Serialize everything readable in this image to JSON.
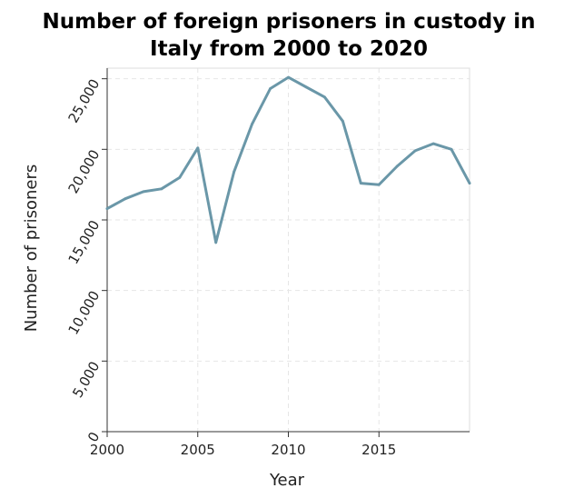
{
  "chart_data": {
    "type": "line",
    "title_lines": [
      "Number of foreign prisoners in custody in",
      "Italy from 2000 to 2020"
    ],
    "xlabel": "Year",
    "ylabel": "Number of prisoners",
    "xlim": [
      2000,
      2020
    ],
    "ylim": [
      0,
      25750
    ],
    "x_ticks": [
      {
        "value": 2000,
        "label": "2000"
      },
      {
        "value": 2005,
        "label": "2005"
      },
      {
        "value": 2010,
        "label": "2010"
      },
      {
        "value": 2015,
        "label": "2015"
      }
    ],
    "y_ticks": [
      {
        "value": 0,
        "label": "0"
      },
      {
        "value": 5000,
        "label": "5,000"
      },
      {
        "value": 10000,
        "label": "10,000"
      },
      {
        "value": 15000,
        "label": "15,000"
      },
      {
        "value": 20000,
        "label": "20,000"
      },
      {
        "value": 25000,
        "label": "25,000"
      }
    ],
    "grid": true,
    "line_color": "#6a97a8",
    "x": [
      2000,
      2001,
      2002,
      2003,
      2004,
      2005,
      2006,
      2007,
      2008,
      2009,
      2010,
      2011,
      2012,
      2013,
      2014,
      2015,
      2016,
      2017,
      2018,
      2019,
      2020
    ],
    "values": [
      15800,
      16500,
      17000,
      17200,
      18000,
      20100,
      13400,
      18400,
      21800,
      24300,
      25100,
      24400,
      23700,
      22000,
      17600,
      17500,
      18800,
      19900,
      20400,
      20000,
      17600
    ]
  }
}
